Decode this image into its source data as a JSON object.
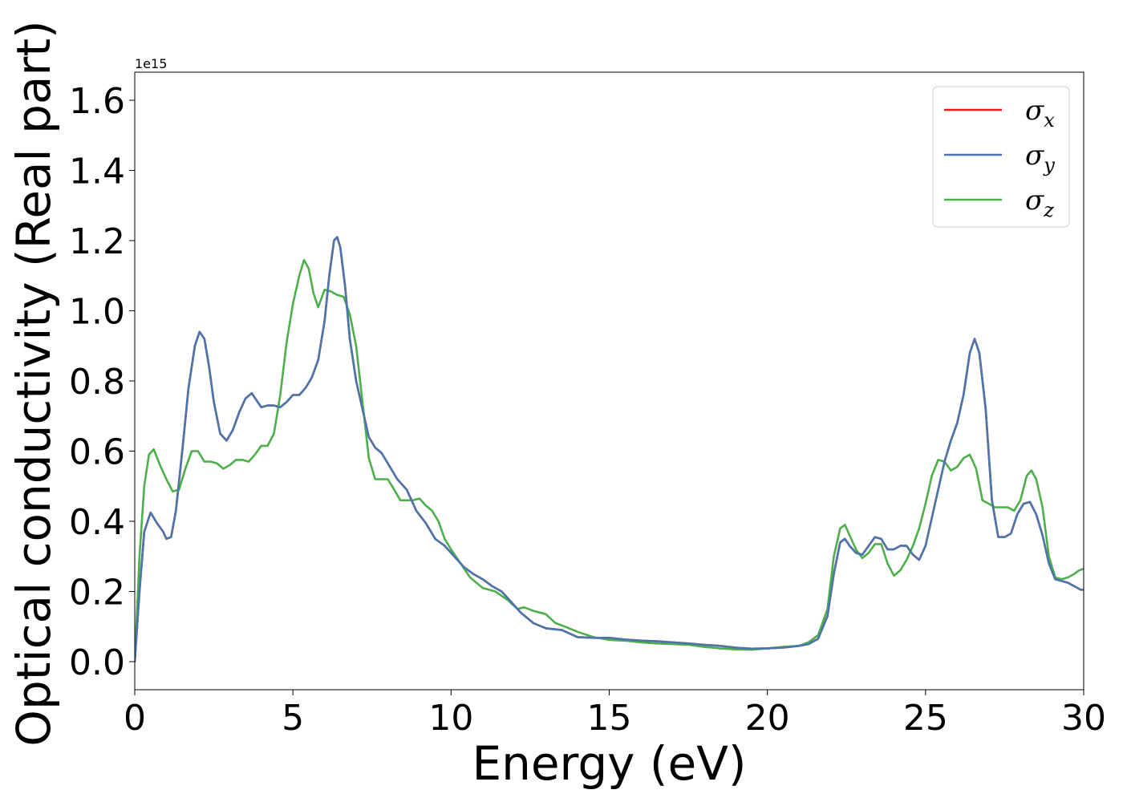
{
  "chart_data": {
    "type": "line",
    "xlabel": "Energy (eV)",
    "ylabel": "Optical conductivity (Real part)",
    "y_offset_label": "1e15",
    "xlim": [
      0,
      30
    ],
    "ylim": [
      -0.08,
      1.68
    ],
    "x_ticks": [
      0,
      5,
      10,
      15,
      20,
      25,
      30
    ],
    "x_tick_labels": [
      "0",
      "5",
      "10",
      "15",
      "20",
      "25",
      "30"
    ],
    "y_ticks": [
      0.0,
      0.2,
      0.4,
      0.6,
      0.8,
      1.0,
      1.2,
      1.4,
      1.6
    ],
    "y_tick_labels": [
      "0.0",
      "0.2",
      "0.4",
      "0.6",
      "0.8",
      "1.0",
      "1.2",
      "1.4",
      "1.6"
    ],
    "grid": false,
    "legend_position": "top-right",
    "series": [
      {
        "name": "σx",
        "symbol": "σ",
        "subscript": "x",
        "color": "#e41a1c",
        "x": [
          0,
          0.15,
          0.3,
          0.5,
          0.7,
          0.9,
          1.0,
          1.15,
          1.3,
          1.5,
          1.7,
          1.9,
          2.05,
          2.2,
          2.35,
          2.5,
          2.7,
          2.9,
          3.1,
          3.3,
          3.5,
          3.7,
          3.85,
          4.0,
          4.2,
          4.4,
          4.6,
          4.8,
          5.0,
          5.2,
          5.4,
          5.6,
          5.8,
          6.0,
          6.15,
          6.3,
          6.4,
          6.5,
          6.65,
          6.8,
          7.0,
          7.2,
          7.4,
          7.6,
          7.8,
          8.0,
          8.3,
          8.6,
          8.9,
          9.2,
          9.5,
          9.8,
          10.1,
          10.4,
          10.7,
          11.0,
          11.3,
          11.6,
          11.9,
          12.2,
          12.6,
          13.0,
          13.5,
          14.0,
          14.5,
          15.0,
          15.5,
          16.0,
          16.5,
          17.0,
          17.5,
          18.0,
          18.5,
          19.0,
          19.5,
          20.0,
          20.5,
          21.0,
          21.3,
          21.6,
          21.9,
          22.1,
          22.3,
          22.45,
          22.6,
          22.8,
          23.0,
          23.2,
          23.4,
          23.6,
          23.8,
          24.0,
          24.2,
          24.4,
          24.6,
          24.8,
          25.0,
          25.2,
          25.4,
          25.6,
          25.8,
          26.0,
          26.2,
          26.4,
          26.55,
          26.7,
          26.9,
          27.1,
          27.3,
          27.5,
          27.7,
          27.9,
          28.1,
          28.3,
          28.5,
          28.7,
          28.9,
          29.1,
          29.3,
          29.5,
          29.7,
          29.9,
          30.0
        ],
        "y": [
          0.0,
          0.2,
          0.37,
          0.425,
          0.395,
          0.37,
          0.35,
          0.355,
          0.43,
          0.6,
          0.78,
          0.9,
          0.94,
          0.92,
          0.84,
          0.74,
          0.65,
          0.63,
          0.66,
          0.71,
          0.75,
          0.765,
          0.745,
          0.725,
          0.73,
          0.73,
          0.725,
          0.74,
          0.76,
          0.76,
          0.78,
          0.81,
          0.86,
          0.97,
          1.1,
          1.2,
          1.21,
          1.18,
          1.07,
          0.92,
          0.8,
          0.72,
          0.64,
          0.61,
          0.595,
          0.565,
          0.52,
          0.49,
          0.43,
          0.395,
          0.35,
          0.33,
          0.3,
          0.27,
          0.25,
          0.235,
          0.215,
          0.2,
          0.17,
          0.14,
          0.11,
          0.095,
          0.09,
          0.07,
          0.068,
          0.068,
          0.063,
          0.06,
          0.058,
          0.055,
          0.052,
          0.048,
          0.045,
          0.04,
          0.037,
          0.038,
          0.04,
          0.045,
          0.05,
          0.065,
          0.13,
          0.25,
          0.34,
          0.35,
          0.33,
          0.31,
          0.305,
          0.33,
          0.355,
          0.35,
          0.32,
          0.32,
          0.33,
          0.33,
          0.305,
          0.29,
          0.33,
          0.41,
          0.49,
          0.57,
          0.63,
          0.68,
          0.76,
          0.88,
          0.92,
          0.88,
          0.72,
          0.46,
          0.355,
          0.355,
          0.365,
          0.42,
          0.45,
          0.455,
          0.42,
          0.36,
          0.28,
          0.235,
          0.23,
          0.225,
          0.215,
          0.205,
          0.205
        ]
      },
      {
        "name": "σy",
        "symbol": "σ",
        "subscript": "y",
        "color": "#4a76ad",
        "x": [
          0,
          0.15,
          0.3,
          0.5,
          0.7,
          0.9,
          1.0,
          1.15,
          1.3,
          1.5,
          1.7,
          1.9,
          2.05,
          2.2,
          2.35,
          2.5,
          2.7,
          2.9,
          3.1,
          3.3,
          3.5,
          3.7,
          3.85,
          4.0,
          4.2,
          4.4,
          4.6,
          4.8,
          5.0,
          5.2,
          5.4,
          5.6,
          5.8,
          6.0,
          6.15,
          6.3,
          6.4,
          6.5,
          6.65,
          6.8,
          7.0,
          7.2,
          7.4,
          7.6,
          7.8,
          8.0,
          8.3,
          8.6,
          8.9,
          9.2,
          9.5,
          9.8,
          10.1,
          10.4,
          10.7,
          11.0,
          11.3,
          11.6,
          11.9,
          12.2,
          12.6,
          13.0,
          13.5,
          14.0,
          14.5,
          15.0,
          15.5,
          16.0,
          16.5,
          17.0,
          17.5,
          18.0,
          18.5,
          19.0,
          19.5,
          20.0,
          20.5,
          21.0,
          21.3,
          21.6,
          21.9,
          22.1,
          22.3,
          22.45,
          22.6,
          22.8,
          23.0,
          23.2,
          23.4,
          23.6,
          23.8,
          24.0,
          24.2,
          24.4,
          24.6,
          24.8,
          25.0,
          25.2,
          25.4,
          25.6,
          25.8,
          26.0,
          26.2,
          26.4,
          26.55,
          26.7,
          26.9,
          27.1,
          27.3,
          27.5,
          27.7,
          27.9,
          28.1,
          28.3,
          28.5,
          28.7,
          28.9,
          29.1,
          29.3,
          29.5,
          29.7,
          29.9,
          30.0
        ],
        "y": [
          0.0,
          0.2,
          0.37,
          0.425,
          0.395,
          0.37,
          0.35,
          0.355,
          0.43,
          0.6,
          0.78,
          0.9,
          0.94,
          0.92,
          0.84,
          0.74,
          0.65,
          0.63,
          0.66,
          0.71,
          0.75,
          0.765,
          0.745,
          0.725,
          0.73,
          0.73,
          0.725,
          0.74,
          0.76,
          0.76,
          0.78,
          0.81,
          0.86,
          0.97,
          1.1,
          1.2,
          1.21,
          1.18,
          1.07,
          0.92,
          0.8,
          0.72,
          0.64,
          0.61,
          0.595,
          0.565,
          0.52,
          0.49,
          0.43,
          0.395,
          0.35,
          0.33,
          0.3,
          0.27,
          0.25,
          0.235,
          0.215,
          0.2,
          0.17,
          0.14,
          0.11,
          0.095,
          0.09,
          0.07,
          0.068,
          0.068,
          0.063,
          0.06,
          0.058,
          0.055,
          0.052,
          0.048,
          0.045,
          0.04,
          0.037,
          0.038,
          0.04,
          0.045,
          0.05,
          0.065,
          0.13,
          0.25,
          0.34,
          0.35,
          0.33,
          0.31,
          0.305,
          0.33,
          0.355,
          0.35,
          0.32,
          0.32,
          0.33,
          0.33,
          0.305,
          0.29,
          0.33,
          0.41,
          0.49,
          0.57,
          0.63,
          0.68,
          0.76,
          0.88,
          0.92,
          0.88,
          0.72,
          0.46,
          0.355,
          0.355,
          0.365,
          0.42,
          0.45,
          0.455,
          0.42,
          0.36,
          0.28,
          0.235,
          0.23,
          0.225,
          0.215,
          0.205,
          0.205
        ]
      },
      {
        "name": "σz",
        "symbol": "σ",
        "subscript": "z",
        "color": "#4daf4a",
        "x": [
          0,
          0.15,
          0.3,
          0.45,
          0.6,
          0.8,
          1.0,
          1.2,
          1.4,
          1.6,
          1.8,
          2.0,
          2.2,
          2.4,
          2.6,
          2.8,
          3.0,
          3.2,
          3.4,
          3.6,
          3.8,
          4.0,
          4.2,
          4.4,
          4.6,
          4.8,
          5.0,
          5.2,
          5.35,
          5.5,
          5.65,
          5.8,
          6.0,
          6.2,
          6.4,
          6.6,
          6.8,
          7.0,
          7.2,
          7.4,
          7.6,
          7.8,
          8.0,
          8.2,
          8.4,
          8.6,
          8.8,
          9.0,
          9.2,
          9.4,
          9.6,
          9.8,
          10.0,
          10.3,
          10.6,
          11.0,
          11.4,
          11.8,
          12.1,
          12.3,
          12.6,
          13.0,
          13.3,
          13.6,
          14.0,
          14.5,
          15.0,
          15.5,
          16.0,
          16.5,
          17.0,
          17.5,
          18.0,
          18.5,
          19.0,
          19.5,
          20.0,
          20.5,
          21.0,
          21.3,
          21.6,
          21.9,
          22.1,
          22.3,
          22.45,
          22.6,
          22.8,
          23.0,
          23.2,
          23.4,
          23.6,
          23.8,
          24.0,
          24.2,
          24.4,
          24.6,
          24.8,
          25.0,
          25.2,
          25.4,
          25.6,
          25.8,
          26.0,
          26.2,
          26.4,
          26.6,
          26.8,
          27.0,
          27.2,
          27.4,
          27.6,
          27.8,
          28.0,
          28.2,
          28.35,
          28.5,
          28.7,
          28.9,
          29.1,
          29.3,
          29.5,
          29.7,
          29.85,
          30.0
        ],
        "y": [
          0.0,
          0.3,
          0.5,
          0.59,
          0.605,
          0.56,
          0.52,
          0.485,
          0.49,
          0.55,
          0.6,
          0.6,
          0.57,
          0.57,
          0.565,
          0.55,
          0.56,
          0.575,
          0.575,
          0.57,
          0.59,
          0.615,
          0.615,
          0.65,
          0.76,
          0.91,
          1.02,
          1.1,
          1.145,
          1.12,
          1.05,
          1.01,
          1.06,
          1.055,
          1.045,
          1.04,
          0.99,
          0.9,
          0.74,
          0.58,
          0.52,
          0.52,
          0.52,
          0.49,
          0.46,
          0.46,
          0.46,
          0.465,
          0.445,
          0.43,
          0.4,
          0.35,
          0.32,
          0.28,
          0.24,
          0.21,
          0.2,
          0.175,
          0.15,
          0.155,
          0.145,
          0.135,
          0.11,
          0.1,
          0.085,
          0.07,
          0.062,
          0.06,
          0.055,
          0.052,
          0.05,
          0.048,
          0.042,
          0.038,
          0.035,
          0.034,
          0.038,
          0.042,
          0.045,
          0.055,
          0.075,
          0.15,
          0.3,
          0.38,
          0.39,
          0.36,
          0.32,
          0.295,
          0.31,
          0.335,
          0.335,
          0.28,
          0.245,
          0.26,
          0.29,
          0.33,
          0.38,
          0.45,
          0.53,
          0.575,
          0.57,
          0.545,
          0.555,
          0.58,
          0.59,
          0.55,
          0.46,
          0.45,
          0.44,
          0.44,
          0.44,
          0.43,
          0.46,
          0.53,
          0.545,
          0.52,
          0.44,
          0.3,
          0.24,
          0.235,
          0.24,
          0.25,
          0.26,
          0.265
        ]
      }
    ]
  }
}
